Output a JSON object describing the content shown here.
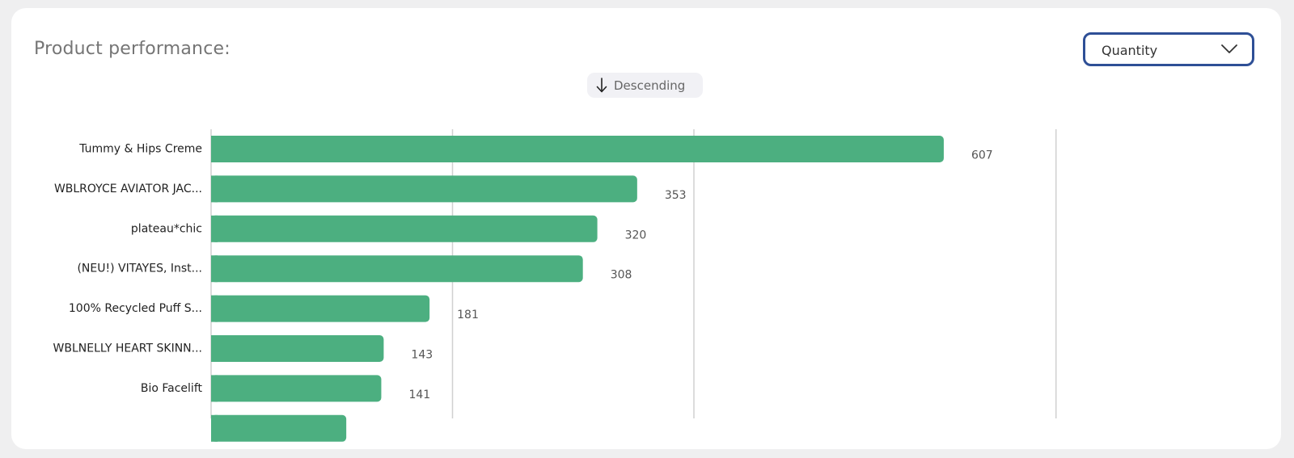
{
  "header": {
    "title": "Product performance:"
  },
  "metric_select": {
    "selected": "Quantity",
    "icon": "chevron-down-icon"
  },
  "sort": {
    "label": "Descending",
    "icon": "arrow-down-icon"
  },
  "colors": {
    "bar": "#4caf80",
    "gridline": "#d0d0d0",
    "select_border": "#2e4f96"
  },
  "chart_data": {
    "type": "bar",
    "orientation": "horizontal",
    "categories": [
      "Tummy & Hips Creme",
      "WBLROYCE AVIATOR JAC...",
      "plateau*chic",
      "(NEU!) VITAYES, Inst...",
      "100% Recycled Puff S...",
      "WBLNELLY HEART SKINN...",
      "Bio Facelift",
      ""
    ],
    "values": [
      607,
      353,
      320,
      308,
      181,
      143,
      141,
      112
    ],
    "value_labels": [
      "607",
      "353",
      "320",
      "308",
      "181",
      "143",
      "141",
      ""
    ],
    "xlim": [
      0,
      700
    ],
    "gridlines": [
      0,
      200,
      400,
      700
    ],
    "grid": true
  }
}
